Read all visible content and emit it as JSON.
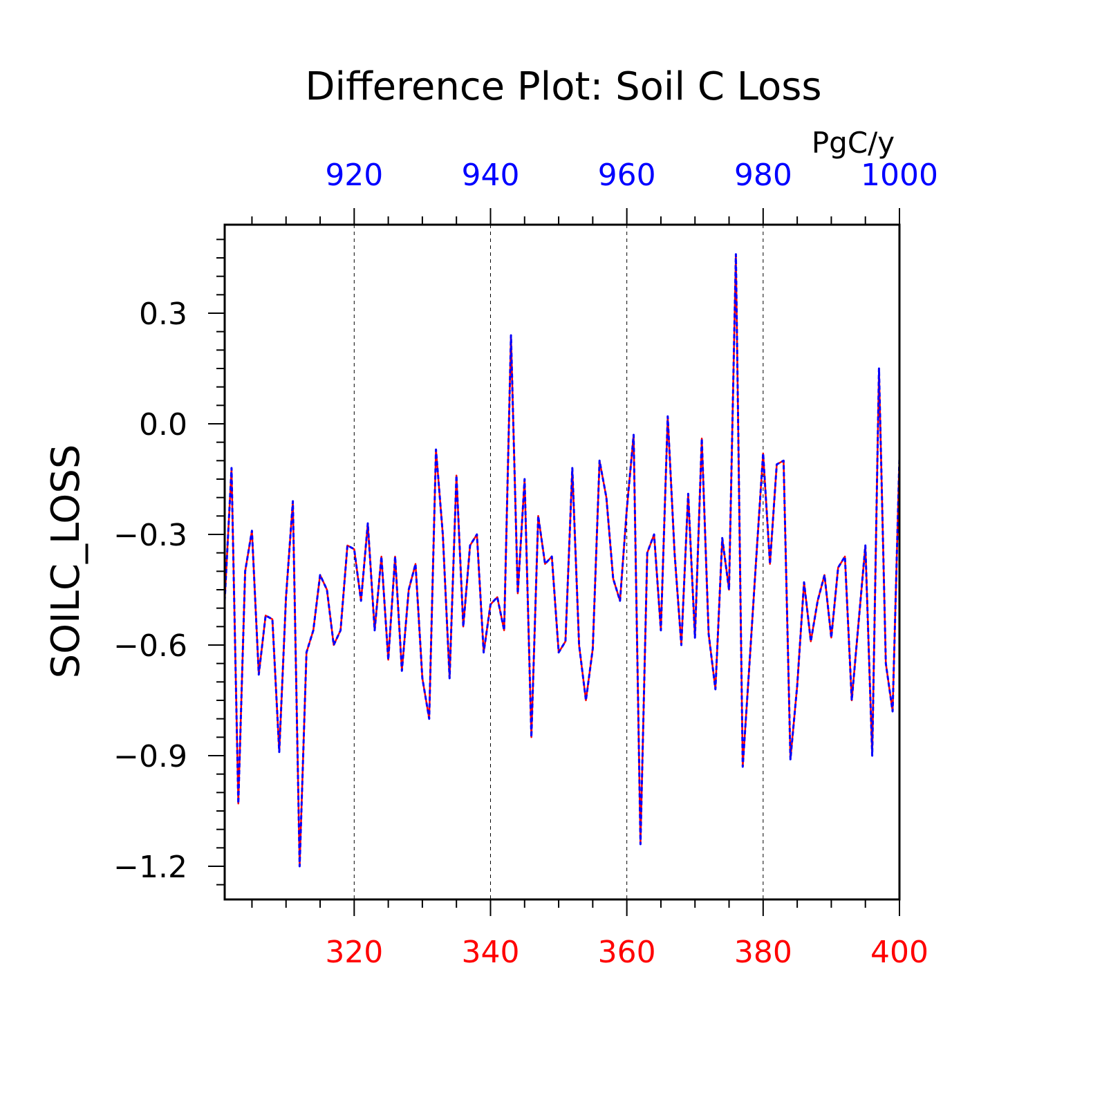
{
  "chart_data": {
    "type": "line",
    "title": "Difference Plot: Soil C Loss",
    "ylabel": "SOILC_LOSS",
    "units": "PgC/y",
    "xlim": [
      301,
      400
    ],
    "top_xlim": [
      901,
      1000
    ],
    "ylim": [
      -1.29,
      0.54
    ],
    "yticks": [
      "0.3",
      "0.0",
      "−0.3",
      "−0.6",
      "−0.9",
      "−1.2"
    ],
    "ytick_values": [
      0.3,
      0.0,
      -0.3,
      -0.6,
      -0.9,
      -1.2
    ],
    "xticks_bottom": [
      "320",
      "340",
      "360",
      "380",
      "400"
    ],
    "xtick_values_bottom": [
      320,
      340,
      360,
      380,
      400
    ],
    "xticks_top": [
      "920",
      "940",
      "960",
      "980",
      "1000"
    ],
    "grid": "vertical dashed lines at major x ticks",
    "colors": {
      "bottom_axis": "#ff0000",
      "top_axis": "#0000ff",
      "series_a": "#ff0000",
      "series_b": "#0000ff"
    },
    "x": [
      301,
      302,
      303,
      304,
      305,
      306,
      307,
      308,
      309,
      310,
      311,
      312,
      313,
      314,
      315,
      316,
      317,
      318,
      319,
      320,
      321,
      322,
      323,
      324,
      325,
      326,
      327,
      328,
      329,
      330,
      331,
      332,
      333,
      334,
      335,
      336,
      337,
      338,
      339,
      340,
      341,
      342,
      343,
      344,
      345,
      346,
      347,
      348,
      349,
      350,
      351,
      352,
      353,
      354,
      355,
      356,
      357,
      358,
      359,
      360,
      361,
      362,
      363,
      364,
      365,
      366,
      367,
      368,
      369,
      370,
      371,
      372,
      373,
      374,
      375,
      376,
      377,
      378,
      379,
      380,
      381,
      382,
      383,
      384,
      385,
      386,
      387,
      388,
      389,
      390,
      391,
      392,
      393,
      394,
      395,
      396,
      397,
      398,
      399,
      400
    ],
    "series": [
      {
        "values": [
          -0.48,
          -0.12,
          -1.03,
          -0.4,
          -0.29,
          -0.68,
          -0.52,
          -0.53,
          -0.89,
          -0.47,
          -0.21,
          -1.2,
          -0.62,
          -0.56,
          -0.41,
          -0.45,
          -0.6,
          -0.56,
          -0.33,
          -0.34,
          -0.48,
          -0.27,
          -0.56,
          -0.36,
          -0.64,
          -0.36,
          -0.67,
          -0.45,
          -0.38,
          -0.69,
          -0.8,
          -0.07,
          -0.3,
          -0.69,
          -0.14,
          -0.55,
          -0.33,
          -0.3,
          -0.62,
          -0.49,
          -0.47,
          -0.56,
          0.24,
          -0.46,
          -0.15,
          -0.85,
          -0.25,
          -0.38,
          -0.36,
          -0.62,
          -0.59,
          -0.12,
          -0.6,
          -0.75,
          -0.61,
          -0.1,
          -0.2,
          -0.42,
          -0.48,
          -0.23,
          -0.03,
          -1.14,
          -0.35,
          -0.3,
          -0.56,
          0.02,
          -0.35,
          -0.6,
          -0.19,
          -0.58,
          -0.04,
          -0.57,
          -0.72,
          -0.31,
          -0.45,
          0.46,
          -0.93,
          -0.65,
          -0.36,
          -0.08,
          -0.38,
          -0.11,
          -0.1,
          -0.91,
          -0.71,
          -0.43,
          -0.59,
          -0.48,
          -0.41,
          -0.58,
          -0.39,
          -0.36,
          -0.75,
          -0.54,
          -0.33,
          -0.9,
          0.15,
          -0.65,
          -0.78,
          -0.09
        ]
      },
      {
        "values": [
          -0.48,
          -0.12,
          -1.03,
          -0.4,
          -0.29,
          -0.68,
          -0.52,
          -0.53,
          -0.89,
          -0.47,
          -0.21,
          -1.2,
          -0.62,
          -0.56,
          -0.41,
          -0.45,
          -0.6,
          -0.56,
          -0.33,
          -0.34,
          -0.48,
          -0.27,
          -0.56,
          -0.36,
          -0.64,
          -0.36,
          -0.67,
          -0.45,
          -0.38,
          -0.69,
          -0.8,
          -0.07,
          -0.3,
          -0.69,
          -0.14,
          -0.55,
          -0.33,
          -0.3,
          -0.62,
          -0.49,
          -0.47,
          -0.56,
          0.24,
          -0.46,
          -0.15,
          -0.85,
          -0.25,
          -0.38,
          -0.36,
          -0.62,
          -0.59,
          -0.12,
          -0.6,
          -0.75,
          -0.61,
          -0.1,
          -0.2,
          -0.42,
          -0.48,
          -0.23,
          -0.03,
          -1.14,
          -0.35,
          -0.3,
          -0.56,
          0.02,
          -0.35,
          -0.6,
          -0.19,
          -0.58,
          -0.04,
          -0.57,
          -0.72,
          -0.31,
          -0.45,
          0.46,
          -0.93,
          -0.65,
          -0.36,
          -0.08,
          -0.38,
          -0.11,
          -0.1,
          -0.91,
          -0.71,
          -0.43,
          -0.59,
          -0.48,
          -0.41,
          -0.58,
          -0.39,
          -0.36,
          -0.75,
          -0.54,
          -0.33,
          -0.9,
          0.15,
          -0.65,
          -0.78,
          -0.09
        ]
      }
    ]
  }
}
